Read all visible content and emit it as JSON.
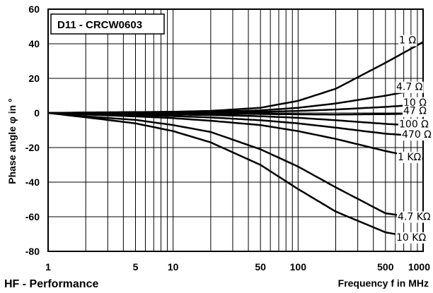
{
  "chart_data": {
    "type": "line",
    "title": "D11 - CRCW0603",
    "caption": "HF - Performance",
    "xlabel": "Frequency f in MHz",
    "ylabel": "Phase angle φ in °",
    "xscale": "log",
    "xlim": [
      1,
      1000
    ],
    "ylim": [
      -80,
      60
    ],
    "grid": true,
    "x_tick_labels": [
      {
        "value": 1,
        "label": "1"
      },
      {
        "value": 5,
        "label": "5"
      },
      {
        "value": 10,
        "label": "10"
      },
      {
        "value": 50,
        "label": "50"
      },
      {
        "value": 100,
        "label": "100"
      },
      {
        "value": 500,
        "label": "500"
      },
      {
        "value": 1000,
        "label": "1000"
      }
    ],
    "y_tick_labels": [
      {
        "value": 60,
        "label": "60"
      },
      {
        "value": 40,
        "label": "40"
      },
      {
        "value": 20,
        "label": "20"
      },
      {
        "value": 0,
        "label": "0"
      },
      {
        "value": -20,
        "label": "-20"
      },
      {
        "value": -40,
        "label": "-40"
      },
      {
        "value": -60,
        "label": "-60"
      },
      {
        "value": -80,
        "label": "-80"
      }
    ],
    "x": [
      1,
      2,
      5,
      10,
      20,
      50,
      100,
      200,
      500,
      1000
    ],
    "series": [
      {
        "name": "1 Ω",
        "values": [
          0,
          0.3,
          0.5,
          0.7,
          1.2,
          3,
          7,
          14,
          29,
          41
        ]
      },
      {
        "name": "4.7 Ω",
        "values": [
          0,
          0.2,
          0.4,
          0.5,
          0.7,
          1.5,
          3,
          5.5,
          10,
          14
        ]
      },
      {
        "name": "10 Ω",
        "values": [
          0,
          0.1,
          0.2,
          0.3,
          0.4,
          0.6,
          1.2,
          2,
          3.5,
          5
        ]
      },
      {
        "name": "47 Ω",
        "values": [
          0,
          -0.1,
          -0.2,
          -0.3,
          -0.4,
          -0.6,
          -0.8,
          -0.9,
          -0.7,
          -0.3
        ]
      },
      {
        "name": "100 Ω",
        "values": [
          0,
          -0.3,
          -0.6,
          -0.9,
          -1.2,
          -1.9,
          -2.8,
          -4.2,
          -6.3,
          -7.5
        ]
      },
      {
        "name": "470 Ω",
        "values": [
          0,
          -0.6,
          -1.2,
          -1.8,
          -2.6,
          -4.2,
          -6,
          -8.5,
          -12,
          -13.5
        ]
      },
      {
        "name": "1 KΩ",
        "values": [
          0,
          -0.9,
          -2,
          -3,
          -4.5,
          -7,
          -10.5,
          -15,
          -22,
          -26.5
        ]
      },
      {
        "name": "4.7 KΩ",
        "values": [
          0,
          -2,
          -4,
          -7,
          -11,
          -21,
          -31,
          -43,
          -58,
          -61
        ]
      },
      {
        "name": "10 KΩ",
        "values": [
          0,
          -2.5,
          -6,
          -10.5,
          -17,
          -30,
          -44,
          -57,
          -69,
          -73
        ]
      }
    ]
  }
}
